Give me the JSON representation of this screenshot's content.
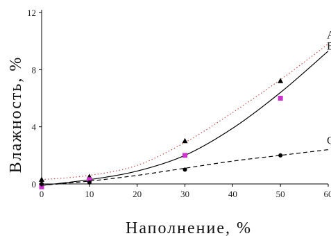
{
  "chart_data": {
    "type": "scatter",
    "xlabel": "Наполнение, %",
    "ylabel": "Влажность, %",
    "xlim": [
      0,
      60
    ],
    "ylim": [
      0,
      12
    ],
    "xticks": [
      "0",
      "10",
      "20",
      "30",
      "40",
      "50",
      "60"
    ],
    "yticks": [
      "0",
      "4",
      "8",
      "12"
    ],
    "grid": false,
    "series": [
      {
        "name": "A",
        "marker": "triangle",
        "line_style": "dotted",
        "color": "#c0504d",
        "x": [
          0,
          10,
          30,
          50
        ],
        "y": [
          0.3,
          0.5,
          3.0,
          7.2
        ],
        "fit_y": [
          0.3,
          0.6,
          1.3,
          2.9,
          5.0,
          7.3,
          9.8
        ]
      },
      {
        "name": "B",
        "marker": "square",
        "line_style": "solid",
        "color": "#000000",
        "marker_color": "#cc33cc",
        "x": [
          0,
          10,
          30,
          50
        ],
        "y": [
          -0.2,
          0.3,
          2.0,
          6.0
        ],
        "fit_y": [
          -0.1,
          0.3,
          0.9,
          2.0,
          3.9,
          6.4,
          9.3
        ]
      },
      {
        "name": "C",
        "marker": "circle",
        "line_style": "dashed",
        "color": "#000000",
        "x": [
          0,
          10,
          30,
          50
        ],
        "y": [
          0.0,
          0.1,
          1.0,
          2.0
        ],
        "fit_y": [
          -0.1,
          0.2,
          0.6,
          1.1,
          1.6,
          2.0,
          2.4
        ]
      }
    ]
  }
}
